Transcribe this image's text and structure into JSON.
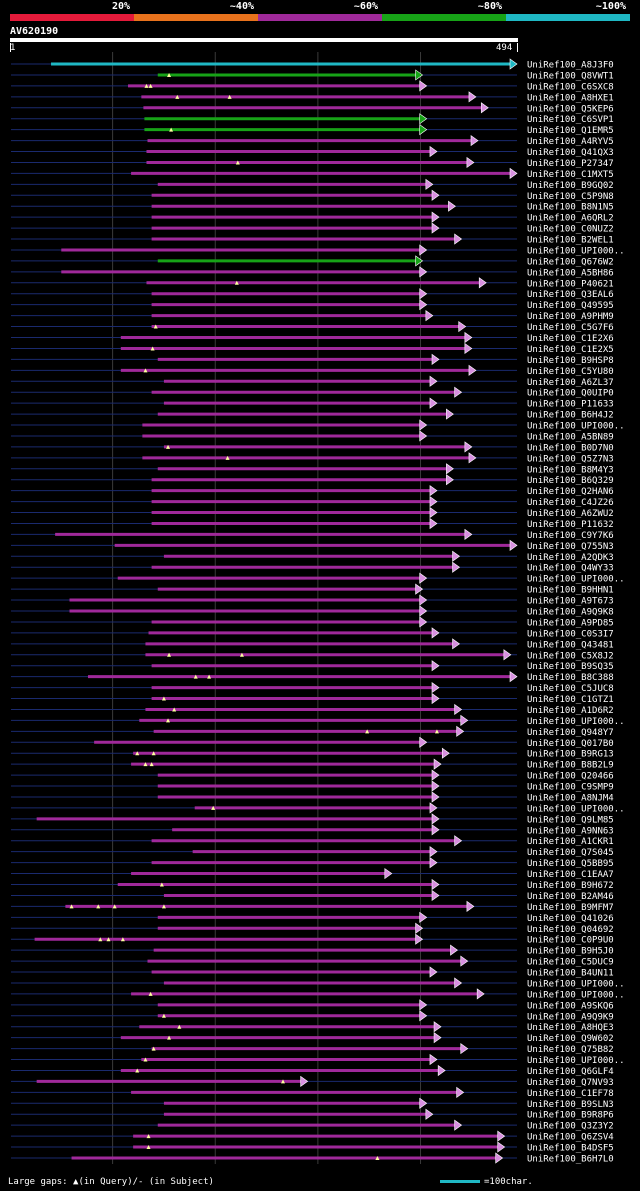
{
  "chart_data": {
    "type": "alignment-overview",
    "query": {
      "id": "AV620190",
      "start": 1,
      "end": 494
    },
    "legend": [
      {
        "label": "20%",
        "color": "#e41a3a"
      },
      {
        "label": "~40%",
        "color": "#e8721c"
      },
      {
        "label": "~60%",
        "color": "#a0299a"
      },
      {
        "label": "~80%",
        "color": "#17a317"
      },
      {
        "label": "~100%",
        "color": "#1fb8c4"
      }
    ],
    "grid_positions": [
      100,
      200,
      300,
      400
    ],
    "hits": [
      {
        "label": "UniRef100_A8J3F0",
        "start": 40,
        "end": 494,
        "cls": "c100",
        "arrow": true
      },
      {
        "label": "UniRef100_Q8VWT1",
        "start": 144,
        "end": 402,
        "cls": "c80",
        "arrow": true,
        "gaps": [
          155
        ]
      },
      {
        "label": "UniRef100_C6SXC8",
        "start": 115,
        "end": 406,
        "cls": "c60",
        "arrow": true,
        "gaps": [
          133,
          137
        ]
      },
      {
        "label": "UniRef100_A8HXE1",
        "start": 128,
        "end": 454,
        "cls": "c60",
        "arrow": true,
        "gaps": [
          163,
          214
        ]
      },
      {
        "label": "UniRef100_Q5KEP6",
        "start": 130,
        "end": 466,
        "cls": "c60",
        "arrow": true
      },
      {
        "label": "UniRef100_C6SVP1",
        "start": 131,
        "end": 406,
        "cls": "c80",
        "arrow": true
      },
      {
        "label": "UniRef100_Q1EMR5",
        "start": 131,
        "end": 406,
        "cls": "c80",
        "arrow": true,
        "gaps": [
          157
        ]
      },
      {
        "label": "UniRef100_A4RYV5",
        "start": 134,
        "end": 456,
        "cls": "c60",
        "arrow": true
      },
      {
        "label": "UniRef100_Q41QX3",
        "start": 133,
        "end": 416,
        "cls": "c60",
        "arrow": true
      },
      {
        "label": "UniRef100_P27347",
        "start": 133,
        "end": 452,
        "cls": "c60",
        "arrow": true,
        "gaps": [
          222
        ]
      },
      {
        "label": "UniRef100_C1MXT5",
        "start": 118,
        "end": 494,
        "cls": "c60",
        "arrow": true
      },
      {
        "label": "UniRef100_B9GQ02",
        "start": 144,
        "end": 412,
        "cls": "c60",
        "arrow": true
      },
      {
        "label": "UniRef100_C5P9N8",
        "start": 138,
        "end": 418,
        "cls": "c60",
        "arrow": true
      },
      {
        "label": "UniRef100_B8N1N5",
        "start": 138,
        "end": 434,
        "cls": "c60",
        "arrow": true
      },
      {
        "label": "UniRef100_A6QRL2",
        "start": 138,
        "end": 418,
        "cls": "c60",
        "arrow": true
      },
      {
        "label": "UniRef100_C0NUZ2",
        "start": 138,
        "end": 418,
        "cls": "c60",
        "arrow": true
      },
      {
        "label": "UniRef100_B2WEL1",
        "start": 138,
        "end": 440,
        "cls": "c60",
        "arrow": true
      },
      {
        "label": "UniRef100_UPI000..",
        "start": 50,
        "end": 406,
        "cls": "c60",
        "arrow": true
      },
      {
        "label": "UniRef100_Q676W2",
        "start": 144,
        "end": 402,
        "cls": "c80",
        "arrow": true
      },
      {
        "label": "UniRef100_A5BH86",
        "start": 50,
        "end": 406,
        "cls": "c60",
        "arrow": true
      },
      {
        "label": "UniRef100_P40621",
        "start": 133,
        "end": 464,
        "cls": "c60",
        "arrow": true,
        "gaps": [
          221
        ]
      },
      {
        "label": "UniRef100_Q3EAL6",
        "start": 138,
        "end": 406,
        "cls": "c60",
        "arrow": true
      },
      {
        "label": "UniRef100_Q49595",
        "start": 138,
        "end": 406,
        "cls": "c60",
        "arrow": true
      },
      {
        "label": "UniRef100_A9PHM9",
        "start": 138,
        "end": 412,
        "cls": "c60",
        "arrow": true
      },
      {
        "label": "UniRef100_C5G7F6",
        "start": 138,
        "end": 444,
        "cls": "c60",
        "arrow": true,
        "gaps": [
          142
        ]
      },
      {
        "label": "UniRef100_C1E2X6",
        "start": 108,
        "end": 450,
        "cls": "c60",
        "arrow": true
      },
      {
        "label": "UniRef100_C1E2X5",
        "start": 108,
        "end": 450,
        "cls": "c60",
        "arrow": true,
        "gaps": [
          139
        ]
      },
      {
        "label": "UniRef100_B9HSP8",
        "start": 144,
        "end": 418,
        "cls": "c60",
        "arrow": true
      },
      {
        "label": "UniRef100_C5YU80",
        "start": 108,
        "end": 454,
        "cls": "c60",
        "arrow": true,
        "gaps": [
          132
        ]
      },
      {
        "label": "UniRef100_A6ZL37",
        "start": 150,
        "end": 416,
        "cls": "c60",
        "arrow": true
      },
      {
        "label": "UniRef100_Q0UIP0",
        "start": 138,
        "end": 440,
        "cls": "c60",
        "arrow": true
      },
      {
        "label": "UniRef100_P11633",
        "start": 150,
        "end": 416,
        "cls": "c60",
        "arrow": true
      },
      {
        "label": "UniRef100_B6H4J2",
        "start": 144,
        "end": 432,
        "cls": "c60",
        "arrow": true
      },
      {
        "label": "UniRef100_UPI000..",
        "start": 129,
        "end": 406,
        "cls": "c60",
        "arrow": true
      },
      {
        "label": "UniRef100_A5BN89",
        "start": 129,
        "end": 406,
        "cls": "c60",
        "arrow": true
      },
      {
        "label": "UniRef100_B0D7N0",
        "start": 150,
        "end": 450,
        "cls": "c60",
        "arrow": true,
        "gaps": [
          154
        ]
      },
      {
        "label": "UniRef100_Q5Z7N3",
        "start": 129,
        "end": 454,
        "cls": "c60",
        "arrow": true,
        "gaps": [
          212
        ]
      },
      {
        "label": "UniRef100_B8M4Y3",
        "start": 144,
        "end": 432,
        "cls": "c60",
        "arrow": true
      },
      {
        "label": "UniRef100_B6Q329",
        "start": 138,
        "end": 432,
        "cls": "c60",
        "arrow": true
      },
      {
        "label": "UniRef100_Q2HAN6",
        "start": 138,
        "end": 416,
        "cls": "c60",
        "arrow": true
      },
      {
        "label": "UniRef100_C4JZ26",
        "start": 138,
        "end": 416,
        "cls": "c60",
        "arrow": true
      },
      {
        "label": "UniRef100_A6ZWU2",
        "start": 138,
        "end": 416,
        "cls": "c60",
        "arrow": true
      },
      {
        "label": "UniRef100_P11632",
        "start": 138,
        "end": 416,
        "cls": "c60",
        "arrow": true
      },
      {
        "label": "UniRef100_C9Y7K6",
        "start": 44,
        "end": 450,
        "cls": "c60",
        "arrow": true
      },
      {
        "label": "UniRef100_Q755N3",
        "start": 102,
        "end": 494,
        "cls": "c60",
        "arrow": true
      },
      {
        "label": "UniRef100_A2QDK3",
        "start": 150,
        "end": 438,
        "cls": "c60",
        "arrow": true
      },
      {
        "label": "UniRef100_Q4WY33",
        "start": 138,
        "end": 438,
        "cls": "c60",
        "arrow": true
      },
      {
        "label": "UniRef100_UPI000..",
        "start": 105,
        "end": 406,
        "cls": "c60",
        "arrow": true
      },
      {
        "label": "UniRef100_B9HHN1",
        "start": 144,
        "end": 402,
        "cls": "c60",
        "arrow": true
      },
      {
        "label": "UniRef100_A9T673",
        "start": 58,
        "end": 406,
        "cls": "c60",
        "arrow": true
      },
      {
        "label": "UniRef100_A9Q9K8",
        "start": 58,
        "end": 406,
        "cls": "c60",
        "arrow": true
      },
      {
        "label": "UniRef100_A9PD85",
        "start": 138,
        "end": 406,
        "cls": "c60",
        "arrow": true
      },
      {
        "label": "UniRef100_C0S3I7",
        "start": 135,
        "end": 418,
        "cls": "c60",
        "arrow": true
      },
      {
        "label": "UniRef100_Q43481",
        "start": 132,
        "end": 438,
        "cls": "c60",
        "arrow": true
      },
      {
        "label": "UniRef100_C5X8J2",
        "start": 132,
        "end": 488,
        "cls": "c60",
        "arrow": true,
        "gaps": [
          155,
          226
        ]
      },
      {
        "label": "UniRef100_B9SQ35",
        "start": 138,
        "end": 418,
        "cls": "c60",
        "arrow": true
      },
      {
        "label": "UniRef100_B8C388",
        "start": 76,
        "end": 496,
        "cls": "c60",
        "arrow": true,
        "gaps": [
          181,
          194
        ]
      },
      {
        "label": "UniRef100_C5JUC8",
        "start": 138,
        "end": 418,
        "cls": "c60",
        "arrow": true
      },
      {
        "label": "UniRef100_C1GTZ1",
        "start": 138,
        "end": 418,
        "cls": "c60",
        "arrow": true,
        "gaps": [
          150
        ]
      },
      {
        "label": "UniRef100_A1D6R2",
        "start": 132,
        "end": 440,
        "cls": "c60",
        "arrow": true,
        "gaps": [
          160
        ]
      },
      {
        "label": "UniRef100_UPI000..",
        "start": 126,
        "end": 446,
        "cls": "c60",
        "arrow": true,
        "gaps": [
          154
        ]
      },
      {
        "label": "UniRef100_Q948Y7",
        "start": 140,
        "end": 442,
        "cls": "c60",
        "arrow": true,
        "gaps": [
          348,
          416
        ]
      },
      {
        "label": "UniRef100_Q017B0",
        "start": 82,
        "end": 406,
        "cls": "c60",
        "arrow": true
      },
      {
        "label": "UniRef100_B9RG13",
        "start": 120,
        "end": 428,
        "cls": "c60",
        "arrow": true,
        "gaps": [
          124,
          140
        ]
      },
      {
        "label": "UniRef100_B8B2L9",
        "start": 118,
        "end": 420,
        "cls": "c60",
        "arrow": true,
        "gaps": [
          132,
          138
        ]
      },
      {
        "label": "UniRef100_Q20466",
        "start": 144,
        "end": 418,
        "cls": "c60",
        "arrow": true
      },
      {
        "label": "UniRef100_C9SMP9",
        "start": 144,
        "end": 418,
        "cls": "c60",
        "arrow": true
      },
      {
        "label": "UniRef100_A8NJM4",
        "start": 144,
        "end": 418,
        "cls": "c60",
        "arrow": true
      },
      {
        "label": "UniRef100_UPI000..",
        "start": 180,
        "end": 416,
        "cls": "c60",
        "arrow": true,
        "gaps": [
          198
        ]
      },
      {
        "label": "UniRef100_Q9LM85",
        "start": 26,
        "end": 418,
        "cls": "c60",
        "arrow": true
      },
      {
        "label": "UniRef100_A9NN63",
        "start": 158,
        "end": 418,
        "cls": "c60",
        "arrow": true
      },
      {
        "label": "UniRef100_A1CKR1",
        "start": 138,
        "end": 440,
        "cls": "c60",
        "arrow": true
      },
      {
        "label": "UniRef100_Q7S045",
        "start": 178,
        "end": 416,
        "cls": "c60",
        "arrow": true
      },
      {
        "label": "UniRef100_Q5BB95",
        "start": 138,
        "end": 416,
        "cls": "c60",
        "arrow": true
      },
      {
        "label": "UniRef100_C1EAA7",
        "start": 118,
        "end": 372,
        "cls": "c60",
        "arrow": true
      },
      {
        "label": "UniRef100_B9H672",
        "start": 105,
        "end": 418,
        "cls": "c60",
        "arrow": true,
        "gaps": [
          148
        ]
      },
      {
        "label": "UniRef100_B2AM46",
        "start": 150,
        "end": 418,
        "cls": "c60",
        "arrow": true
      },
      {
        "label": "UniRef100_B9MFM7",
        "start": 54,
        "end": 452,
        "cls": "c60",
        "arrow": true,
        "gaps": [
          60,
          86,
          102,
          150
        ]
      },
      {
        "label": "UniRef100_Q41026",
        "start": 144,
        "end": 406,
        "cls": "c60",
        "arrow": true
      },
      {
        "label": "UniRef100_Q04692",
        "start": 144,
        "end": 402,
        "cls": "c60",
        "arrow": true
      },
      {
        "label": "UniRef100_C0P9U0",
        "start": 24,
        "end": 402,
        "cls": "c60",
        "arrow": true,
        "gaps": [
          88,
          96,
          110
        ]
      },
      {
        "label": "UniRef100_B9H5J0",
        "start": 140,
        "end": 436,
        "cls": "c60",
        "arrow": true
      },
      {
        "label": "UniRef100_C5DUC9",
        "start": 134,
        "end": 446,
        "cls": "c60",
        "arrow": true
      },
      {
        "label": "UniRef100_B4UN11",
        "start": 138,
        "end": 416,
        "cls": "c60",
        "arrow": true
      },
      {
        "label": "UniRef100_UPI000..",
        "start": 150,
        "end": 440,
        "cls": "c60",
        "arrow": true
      },
      {
        "label": "UniRef100_UPI000..",
        "start": 118,
        "end": 462,
        "cls": "c60",
        "arrow": true,
        "gaps": [
          137
        ]
      },
      {
        "label": "UniRef100_A9SKQ6",
        "start": 144,
        "end": 406,
        "cls": "c60",
        "arrow": true
      },
      {
        "label": "UniRef100_A9Q9K9",
        "start": 144,
        "end": 406,
        "cls": "c60",
        "arrow": true,
        "gaps": [
          150
        ]
      },
      {
        "label": "UniRef100_A8HQE3",
        "start": 126,
        "end": 420,
        "cls": "c60",
        "arrow": true,
        "gaps": [
          165
        ]
      },
      {
        "label": "UniRef100_Q9W602",
        "start": 108,
        "end": 420,
        "cls": "c60",
        "arrow": true,
        "gaps": [
          155
        ]
      },
      {
        "label": "UniRef100_Q75B82",
        "start": 138,
        "end": 446,
        "cls": "c60",
        "arrow": true,
        "gaps": [
          140
        ]
      },
      {
        "label": "UniRef100_UPI000..",
        "start": 128,
        "end": 416,
        "cls": "c60",
        "arrow": true,
        "gaps": [
          132
        ]
      },
      {
        "label": "UniRef100_Q6GLF4",
        "start": 108,
        "end": 424,
        "cls": "c60",
        "arrow": true,
        "gaps": [
          124
        ]
      },
      {
        "label": "UniRef100_Q7NV93",
        "start": 26,
        "end": 290,
        "cls": "c60",
        "arrow": true,
        "gaps": [
          266
        ]
      },
      {
        "label": "UniRef100_C1EF78",
        "start": 118,
        "end": 442,
        "cls": "c60",
        "arrow": true
      },
      {
        "label": "UniRef100_B9SLN3",
        "start": 150,
        "end": 406,
        "cls": "c60",
        "arrow": true
      },
      {
        "label": "UniRef100_B9R8P6",
        "start": 150,
        "end": 412,
        "cls": "c60",
        "arrow": true
      },
      {
        "label": "UniRef100_Q3Z3Y2",
        "start": 144,
        "end": 440,
        "cls": "c60",
        "arrow": true
      },
      {
        "label": "UniRef100_Q6ZSV4",
        "start": 120,
        "end": 482,
        "cls": "c60",
        "arrow": true,
        "gaps": [
          135
        ]
      },
      {
        "label": "UniRef100_B4DSF5",
        "start": 120,
        "end": 482,
        "cls": "c60",
        "arrow": true,
        "gaps": [
          135
        ]
      },
      {
        "label": "UniRef100_B6H7L0",
        "start": 60,
        "end": 480,
        "cls": "c60",
        "arrow": true,
        "gaps": [
          358
        ]
      }
    ]
  },
  "footer": {
    "text": "Large gaps: ▲(in Query)/- (in Subject)",
    "scale": "=100char."
  }
}
